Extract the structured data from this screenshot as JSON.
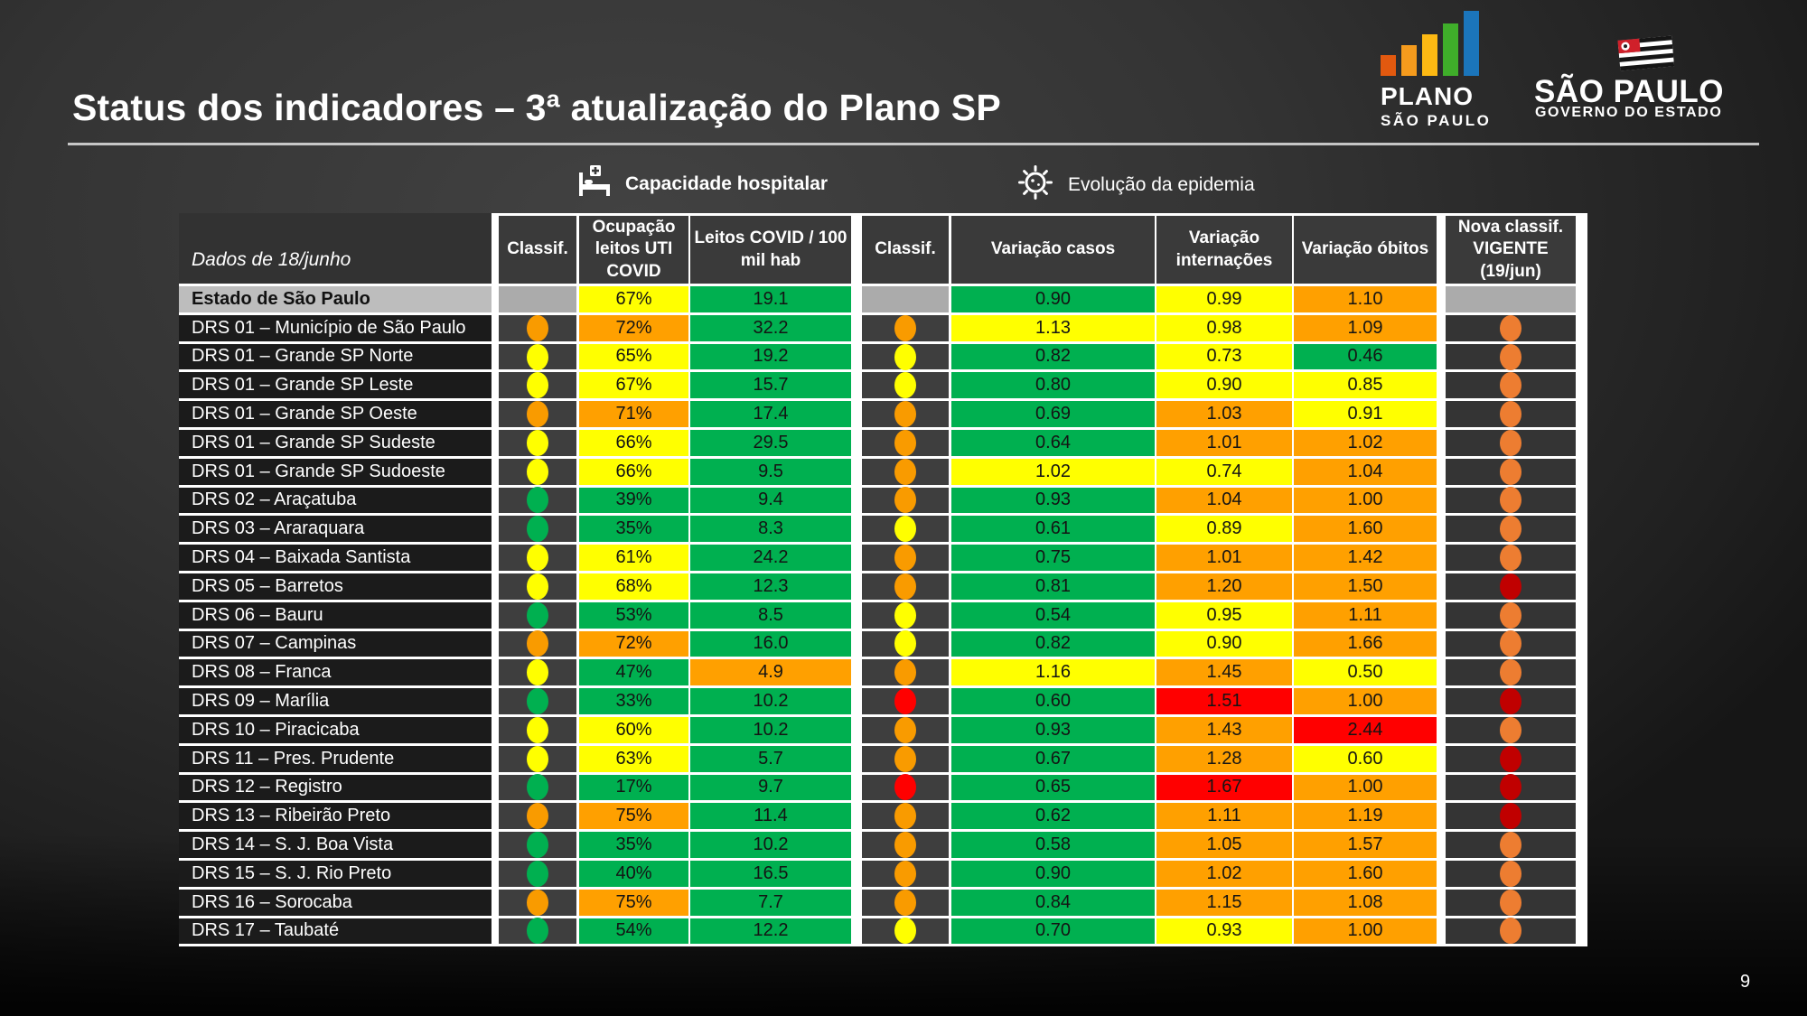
{
  "slide": {
    "title": "Status dos indicadores – 3ª atualização do Plano SP",
    "page_number": "9"
  },
  "logos": {
    "plano": {
      "line1": "PLANO",
      "line2": "SÃO PAULO"
    },
    "governo": {
      "line1": "SÃO PAULO",
      "line2": "GOVERNO DO ESTADO"
    }
  },
  "legend": {
    "hospital_label": "Capacidade hospitalar",
    "hospital_icon": "hospital-bed-icon",
    "epidemic_label": "Evolução da epidemia",
    "epidemic_icon": "virus-icon"
  },
  "colors": {
    "cells": {
      "green": "#00B050",
      "yellow": "#FFFF00",
      "orange": "#FFA000",
      "red": "#FF0000"
    },
    "circles": {
      "green": "#00B050",
      "yellow": "#FFFF00",
      "orange": "#F99B00",
      "red": "#FF0000"
    },
    "nova_circles": {
      "orange": "#ED7D31",
      "red": "#C00000"
    }
  },
  "table": {
    "date_label": "Dados de 18/junho",
    "headers": {
      "classif1": "Classif.",
      "occ": "Ocupação leitos UTI COVID",
      "leitos": "Leitos COVID / 100 mil hab",
      "classif2": "Classif.",
      "casos": "Variação casos",
      "intern": "Variação internações",
      "obitos": "Variação óbitos",
      "nova": "Nova classif. VIGENTE (19/jun)"
    },
    "rows": [
      {
        "name": "Estado de São Paulo",
        "estado": true,
        "c1": null,
        "occ": "67%",
        "occ_c": "yellow",
        "leitos": "19.1",
        "leitos_c": "green",
        "c2": null,
        "casos": "0.90",
        "casos_c": "green",
        "intern": "0.99",
        "intern_c": "yellow",
        "obitos": "1.10",
        "obitos_c": "orange",
        "nova": null
      },
      {
        "name": "DRS 01 – Município de São Paulo",
        "c1": "orange",
        "occ": "72%",
        "occ_c": "orange",
        "leitos": "32.2",
        "leitos_c": "green",
        "c2": "orange",
        "casos": "1.13",
        "casos_c": "yellow",
        "intern": "0.98",
        "intern_c": "yellow",
        "obitos": "1.09",
        "obitos_c": "orange",
        "nova": "orange"
      },
      {
        "name": "DRS 01 – Grande SP Norte",
        "c1": "yellow",
        "occ": "65%",
        "occ_c": "yellow",
        "leitos": "19.2",
        "leitos_c": "green",
        "c2": "yellow",
        "casos": "0.82",
        "casos_c": "green",
        "intern": "0.73",
        "intern_c": "yellow",
        "obitos": "0.46",
        "obitos_c": "green",
        "nova": "orange"
      },
      {
        "name": "DRS 01 – Grande SP Leste",
        "c1": "yellow",
        "occ": "67%",
        "occ_c": "yellow",
        "leitos": "15.7",
        "leitos_c": "green",
        "c2": "yellow",
        "casos": "0.80",
        "casos_c": "green",
        "intern": "0.90",
        "intern_c": "yellow",
        "obitos": "0.85",
        "obitos_c": "yellow",
        "nova": "orange"
      },
      {
        "name": "DRS 01 – Grande SP Oeste",
        "c1": "orange",
        "occ": "71%",
        "occ_c": "orange",
        "leitos": "17.4",
        "leitos_c": "green",
        "c2": "orange",
        "casos": "0.69",
        "casos_c": "green",
        "intern": "1.03",
        "intern_c": "orange",
        "obitos": "0.91",
        "obitos_c": "yellow",
        "nova": "orange"
      },
      {
        "name": "DRS 01 – Grande SP Sudeste",
        "c1": "yellow",
        "occ": "66%",
        "occ_c": "yellow",
        "leitos": "29.5",
        "leitos_c": "green",
        "c2": "orange",
        "casos": "0.64",
        "casos_c": "green",
        "intern": "1.01",
        "intern_c": "orange",
        "obitos": "1.02",
        "obitos_c": "orange",
        "nova": "orange"
      },
      {
        "name": "DRS 01 – Grande SP Sudoeste",
        "c1": "yellow",
        "occ": "66%",
        "occ_c": "yellow",
        "leitos": "9.5",
        "leitos_c": "green",
        "c2": "orange",
        "casos": "1.02",
        "casos_c": "yellow",
        "intern": "0.74",
        "intern_c": "yellow",
        "obitos": "1.04",
        "obitos_c": "orange",
        "nova": "orange"
      },
      {
        "name": "DRS 02 – Araçatuba",
        "c1": "green",
        "occ": "39%",
        "occ_c": "green",
        "leitos": "9.4",
        "leitos_c": "green",
        "c2": "orange",
        "casos": "0.93",
        "casos_c": "green",
        "intern": "1.04",
        "intern_c": "orange",
        "obitos": "1.00",
        "obitos_c": "orange",
        "nova": "orange"
      },
      {
        "name": "DRS 03 – Araraquara",
        "c1": "green",
        "occ": "35%",
        "occ_c": "green",
        "leitos": "8.3",
        "leitos_c": "green",
        "c2": "yellow",
        "casos": "0.61",
        "casos_c": "green",
        "intern": "0.89",
        "intern_c": "yellow",
        "obitos": "1.60",
        "obitos_c": "orange",
        "nova": "orange"
      },
      {
        "name": "DRS 04 – Baixada Santista",
        "c1": "yellow",
        "occ": "61%",
        "occ_c": "yellow",
        "leitos": "24.2",
        "leitos_c": "green",
        "c2": "orange",
        "casos": "0.75",
        "casos_c": "green",
        "intern": "1.01",
        "intern_c": "orange",
        "obitos": "1.42",
        "obitos_c": "orange",
        "nova": "orange"
      },
      {
        "name": "DRS 05 – Barretos",
        "c1": "yellow",
        "occ": "68%",
        "occ_c": "yellow",
        "leitos": "12.3",
        "leitos_c": "green",
        "c2": "orange",
        "casos": "0.81",
        "casos_c": "green",
        "intern": "1.20",
        "intern_c": "orange",
        "obitos": "1.50",
        "obitos_c": "orange",
        "nova": "red"
      },
      {
        "name": "DRS 06 – Bauru",
        "c1": "green",
        "occ": "53%",
        "occ_c": "green",
        "leitos": "8.5",
        "leitos_c": "green",
        "c2": "yellow",
        "casos": "0.54",
        "casos_c": "green",
        "intern": "0.95",
        "intern_c": "yellow",
        "obitos": "1.11",
        "obitos_c": "orange",
        "nova": "orange"
      },
      {
        "name": "DRS 07 – Campinas",
        "c1": "orange",
        "occ": "72%",
        "occ_c": "orange",
        "leitos": "16.0",
        "leitos_c": "green",
        "c2": "yellow",
        "casos": "0.82",
        "casos_c": "green",
        "intern": "0.90",
        "intern_c": "yellow",
        "obitos": "1.66",
        "obitos_c": "orange",
        "nova": "orange"
      },
      {
        "name": "DRS 08 – Franca",
        "c1": "yellow",
        "occ": "47%",
        "occ_c": "green",
        "leitos": "4.9",
        "leitos_c": "orange",
        "c2": "orange",
        "casos": "1.16",
        "casos_c": "yellow",
        "intern": "1.45",
        "intern_c": "orange",
        "obitos": "0.50",
        "obitos_c": "yellow",
        "nova": "orange"
      },
      {
        "name": "DRS 09 – Marília",
        "c1": "green",
        "occ": "33%",
        "occ_c": "green",
        "leitos": "10.2",
        "leitos_c": "green",
        "c2": "red",
        "casos": "0.60",
        "casos_c": "green",
        "intern": "1.51",
        "intern_c": "red",
        "obitos": "1.00",
        "obitos_c": "orange",
        "nova": "red"
      },
      {
        "name": "DRS 10 – Piracicaba",
        "c1": "yellow",
        "occ": "60%",
        "occ_c": "yellow",
        "leitos": "10.2",
        "leitos_c": "green",
        "c2": "orange",
        "casos": "0.93",
        "casos_c": "green",
        "intern": "1.43",
        "intern_c": "orange",
        "obitos": "2.44",
        "obitos_c": "red",
        "nova": "orange"
      },
      {
        "name": "DRS 11 – Pres. Prudente",
        "c1": "yellow",
        "occ": "63%",
        "occ_c": "yellow",
        "leitos": "5.7",
        "leitos_c": "green",
        "c2": "orange",
        "casos": "0.67",
        "casos_c": "green",
        "intern": "1.28",
        "intern_c": "orange",
        "obitos": "0.60",
        "obitos_c": "yellow",
        "nova": "red"
      },
      {
        "name": "DRS 12 – Registro",
        "c1": "green",
        "occ": "17%",
        "occ_c": "green",
        "leitos": "9.7",
        "leitos_c": "green",
        "c2": "red",
        "casos": "0.65",
        "casos_c": "green",
        "intern": "1.67",
        "intern_c": "red",
        "obitos": "1.00",
        "obitos_c": "orange",
        "nova": "red"
      },
      {
        "name": "DRS 13 – Ribeirão Preto",
        "c1": "orange",
        "occ": "75%",
        "occ_c": "orange",
        "leitos": "11.4",
        "leitos_c": "green",
        "c2": "orange",
        "casos": "0.62",
        "casos_c": "green",
        "intern": "1.11",
        "intern_c": "orange",
        "obitos": "1.19",
        "obitos_c": "orange",
        "nova": "red"
      },
      {
        "name": "DRS 14 – S. J. Boa Vista",
        "c1": "green",
        "occ": "35%",
        "occ_c": "green",
        "leitos": "10.2",
        "leitos_c": "green",
        "c2": "orange",
        "casos": "0.58",
        "casos_c": "green",
        "intern": "1.05",
        "intern_c": "orange",
        "obitos": "1.57",
        "obitos_c": "orange",
        "nova": "orange"
      },
      {
        "name": "DRS 15 – S. J. Rio Preto",
        "c1": "green",
        "occ": "40%",
        "occ_c": "green",
        "leitos": "16.5",
        "leitos_c": "green",
        "c2": "orange",
        "casos": "0.90",
        "casos_c": "green",
        "intern": "1.02",
        "intern_c": "orange",
        "obitos": "1.60",
        "obitos_c": "orange",
        "nova": "orange"
      },
      {
        "name": "DRS 16 – Sorocaba",
        "c1": "orange",
        "occ": "75%",
        "occ_c": "orange",
        "leitos": "7.7",
        "leitos_c": "green",
        "c2": "orange",
        "casos": "0.84",
        "casos_c": "green",
        "intern": "1.15",
        "intern_c": "orange",
        "obitos": "1.08",
        "obitos_c": "orange",
        "nova": "orange"
      },
      {
        "name": "DRS 17 – Taubaté",
        "c1": "green",
        "occ": "54%",
        "occ_c": "green",
        "leitos": "12.2",
        "leitos_c": "green",
        "c2": "yellow",
        "casos": "0.70",
        "casos_c": "green",
        "intern": "0.93",
        "intern_c": "yellow",
        "obitos": "1.00",
        "obitos_c": "orange",
        "nova": "orange"
      }
    ]
  }
}
